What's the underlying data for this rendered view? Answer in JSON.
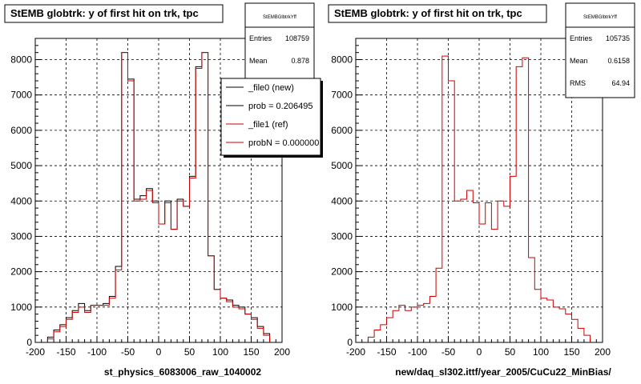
{
  "chart_data": [
    {
      "type": "line",
      "title": "StEMB globtrk: y of first hit on trk, tpc",
      "xlabel": "st_physics_6083006_raw_1040002",
      "xlim": [
        -200,
        200
      ],
      "ylim": [
        0,
        8600
      ],
      "xticks": [
        -200,
        -150,
        -100,
        -50,
        0,
        50,
        100,
        150,
        200
      ],
      "yticks": [
        0,
        1000,
        2000,
        3000,
        4000,
        5000,
        6000,
        7000,
        8000
      ],
      "bin_width": 10,
      "grid": true,
      "stats": {
        "name": "StEMBGlbtrkYff",
        "rows": [
          {
            "label": "Entries",
            "value": "108759"
          },
          {
            "label": "Mean",
            "value": "0.878"
          }
        ]
      },
      "legend": [
        {
          "label": "_file0 (new)",
          "color": "#000000"
        },
        {
          "label": "prob = 0.206495",
          "color": "#000000"
        },
        {
          "label": "_file1 (ref)",
          "color": "#cc0000"
        },
        {
          "label": "probN = 0.000000",
          "color": "#cc0000"
        }
      ],
      "series": [
        {
          "name": "_file0 (new)",
          "color": "#000000",
          "x": [
            -180,
            -170,
            -160,
            -150,
            -140,
            -130,
            -120,
            -110,
            -100,
            -90,
            -80,
            -70,
            -60,
            -50,
            -40,
            -30,
            -20,
            -10,
            0,
            10,
            20,
            30,
            40,
            50,
            60,
            70,
            80,
            90,
            100,
            110,
            120,
            130,
            140,
            150,
            160,
            170
          ],
          "values": [
            150,
            350,
            500,
            700,
            900,
            1100,
            900,
            1050,
            1050,
            1100,
            1300,
            2150,
            8200,
            7450,
            4050,
            4150,
            4350,
            4000,
            3350,
            4000,
            3200,
            4050,
            3850,
            4700,
            7800,
            8200,
            2450,
            1500,
            1250,
            1200,
            1050,
            1000,
            800,
            700,
            450,
            250
          ]
        },
        {
          "name": "_file1 (ref)",
          "color": "#cc0000",
          "x": [
            -180,
            -170,
            -160,
            -150,
            -140,
            -130,
            -120,
            -110,
            -100,
            -90,
            -80,
            -70,
            -60,
            -50,
            -40,
            -30,
            -20,
            -10,
            0,
            10,
            20,
            30,
            40,
            50,
            60,
            70,
            80,
            90,
            100,
            110,
            120,
            130,
            140,
            150,
            160,
            170
          ],
          "values": [
            100,
            300,
            450,
            650,
            850,
            1000,
            850,
            1050,
            1050,
            1050,
            1250,
            2050,
            8200,
            7400,
            4000,
            4050,
            4300,
            3950,
            3350,
            3950,
            3200,
            4000,
            3850,
            4650,
            7750,
            8200,
            2450,
            1500,
            1250,
            1150,
            1000,
            950,
            800,
            650,
            400,
            200
          ]
        }
      ]
    },
    {
      "type": "line",
      "title": "StEMB globtrk: y of first hit on trk, tpc",
      "xlabel": "new/daq_sl302.ittf/year_2005/CuCu22_MinBias/",
      "xlim": [
        -200,
        200
      ],
      "ylim": [
        0,
        8600
      ],
      "xticks": [
        -200,
        -150,
        -100,
        -50,
        0,
        50,
        100,
        150,
        200
      ],
      "yticks": [
        0,
        1000,
        2000,
        3000,
        4000,
        5000,
        6000,
        7000,
        8000
      ],
      "bin_width": 10,
      "grid": true,
      "stats": {
        "name": "StEMBGlbtrkYff",
        "rows": [
          {
            "label": "Entries",
            "value": "105735"
          },
          {
            "label": "Mean",
            "value": "0.6158"
          },
          {
            "label": "RMS",
            "value": "64.94"
          }
        ]
      },
      "legend": [],
      "series": [
        {
          "name": "",
          "color": "#cc0000",
          "x": [
            -180,
            -170,
            -160,
            -150,
            -140,
            -130,
            -120,
            -110,
            -100,
            -90,
            -80,
            -70,
            -60,
            -50,
            -40,
            -30,
            -20,
            -10,
            0,
            10,
            20,
            30,
            40,
            50,
            60,
            70,
            80,
            90,
            100,
            110,
            120,
            130,
            140,
            150,
            160,
            170
          ],
          "values": [
            150,
            350,
            500,
            700,
            900,
            1050,
            900,
            1000,
            1050,
            1100,
            1300,
            2100,
            8100,
            7400,
            4000,
            4050,
            4300,
            3950,
            3350,
            3950,
            3200,
            4000,
            3850,
            4700,
            7800,
            8050,
            2400,
            1500,
            1250,
            1200,
            1000,
            950,
            800,
            650,
            400,
            200
          ]
        }
      ]
    }
  ]
}
